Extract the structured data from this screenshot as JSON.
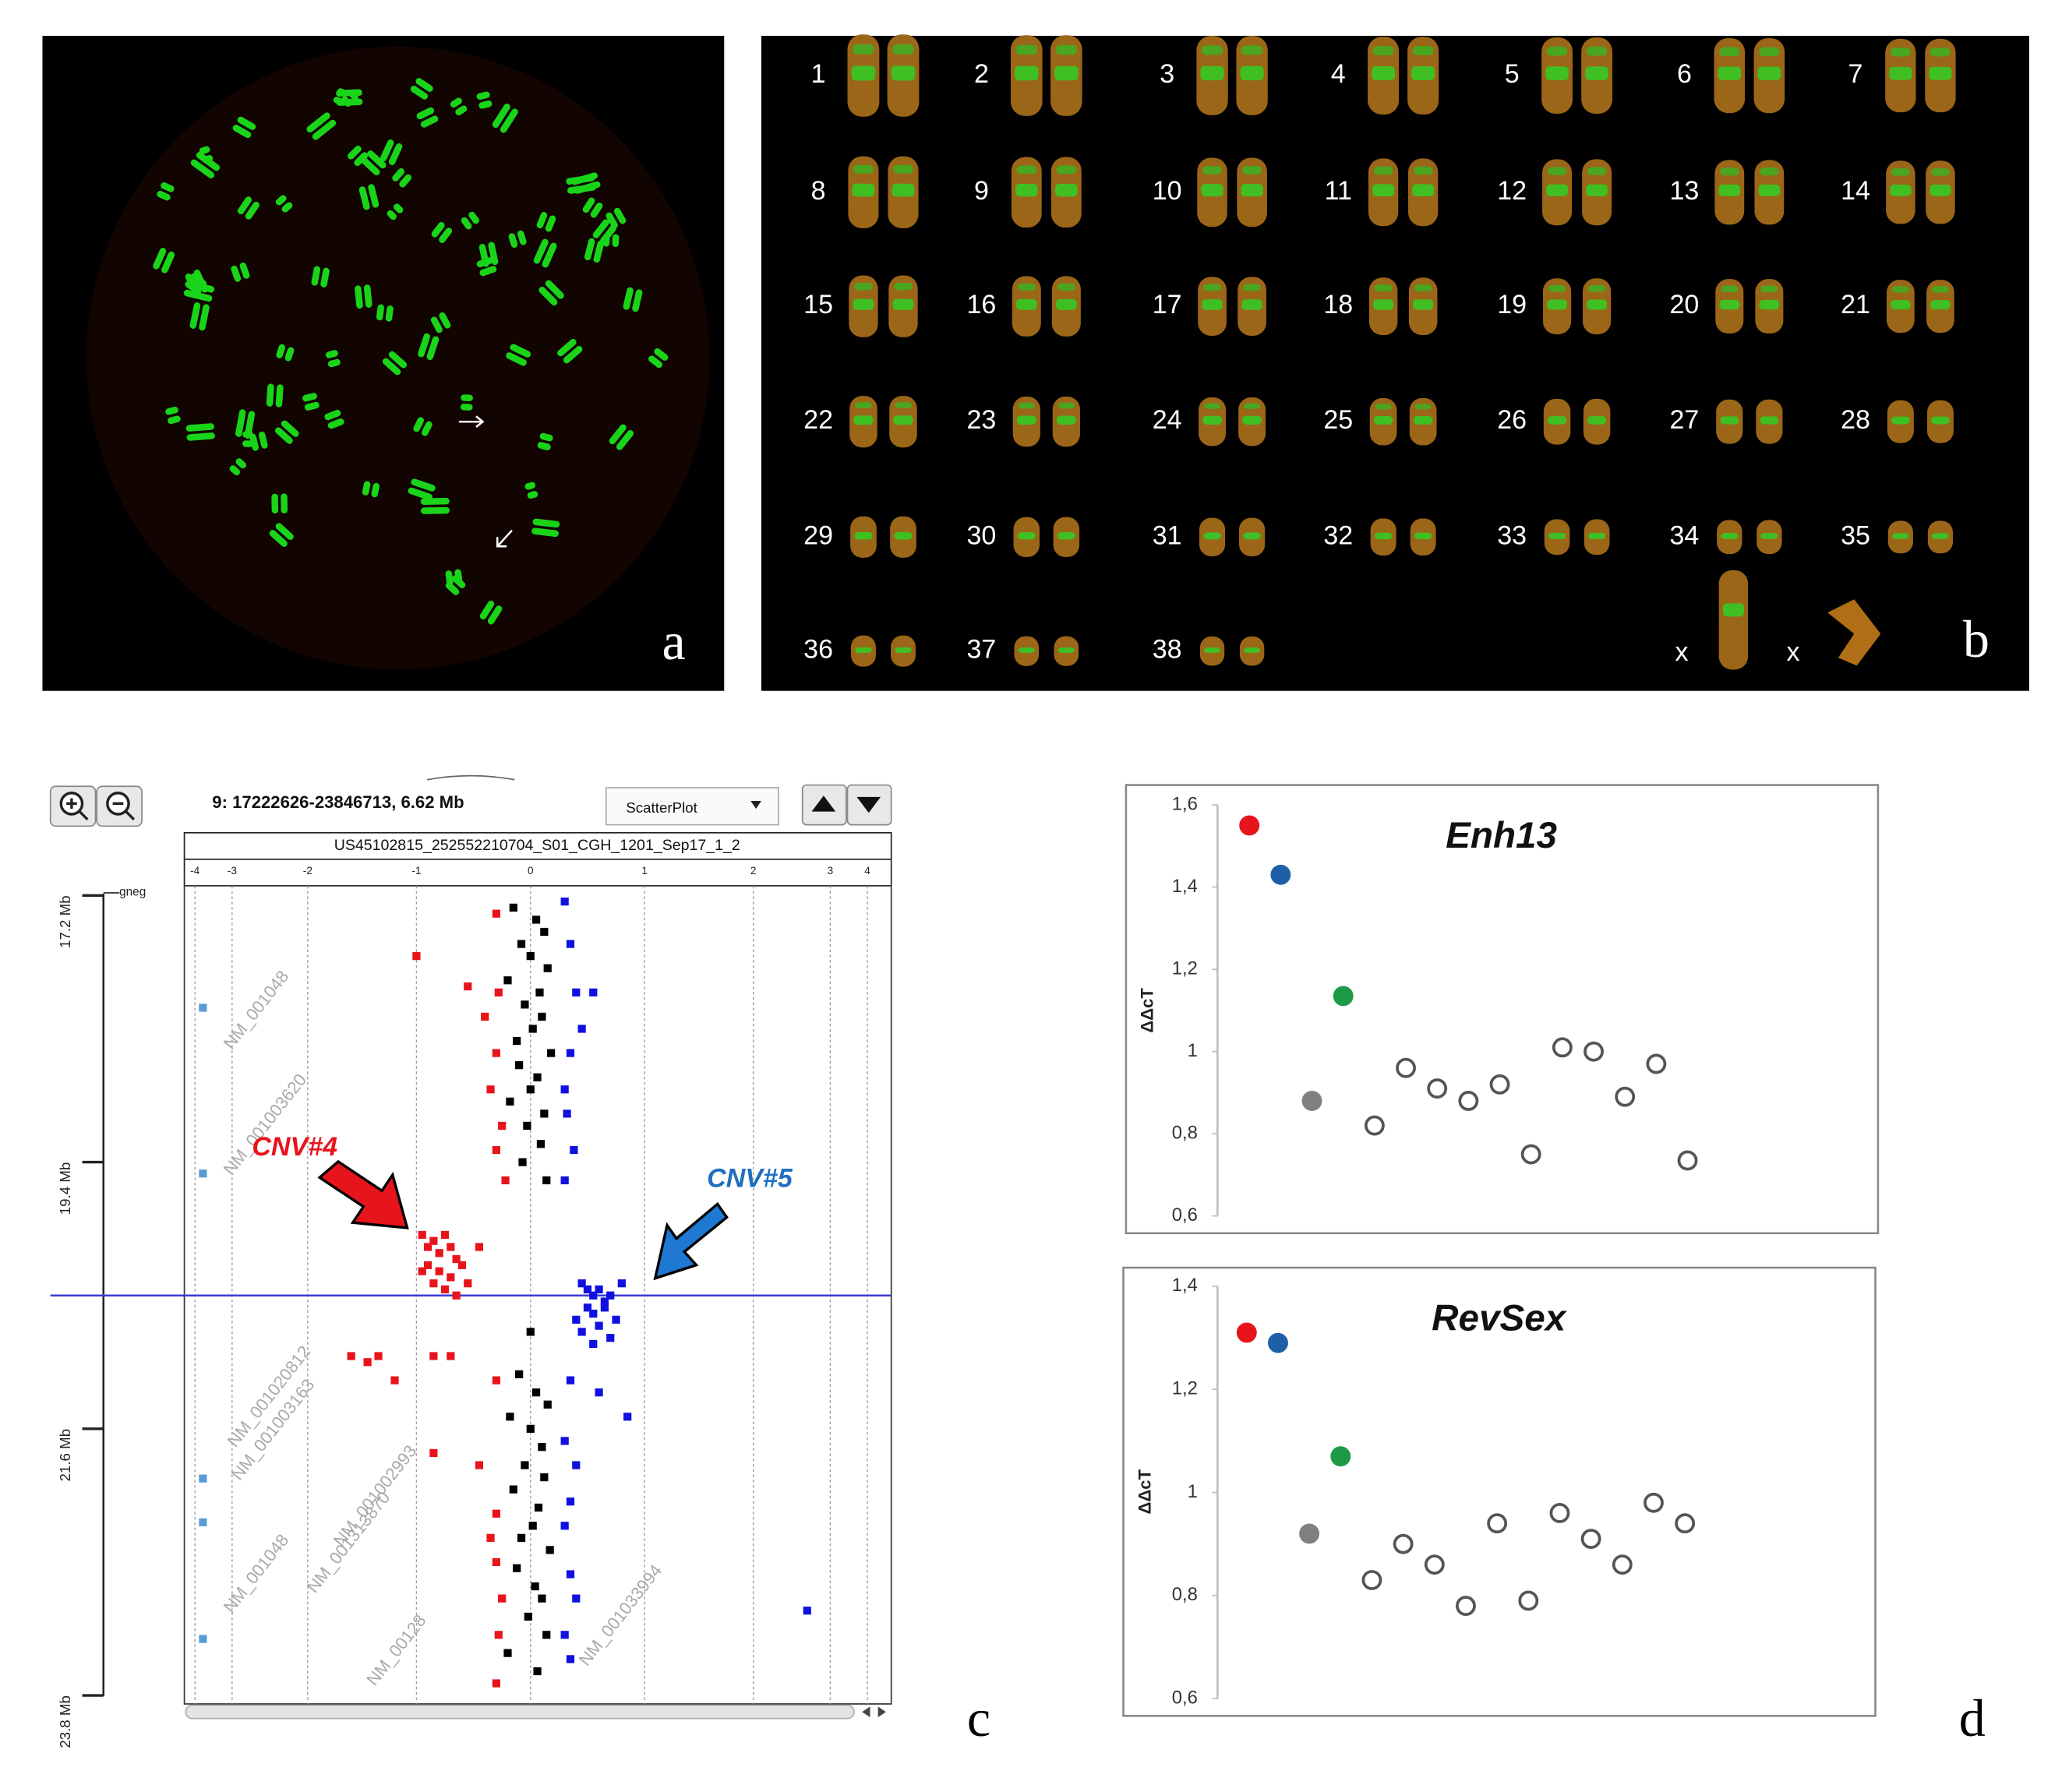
{
  "panel_labels": [
    "a",
    "b",
    "c",
    "d"
  ],
  "karyotype": {
    "labels": [
      "1",
      "2",
      "3",
      "4",
      "5",
      "6",
      "7",
      "8",
      "9",
      "10",
      "11",
      "12",
      "13",
      "14",
      "15",
      "16",
      "17",
      "18",
      "19",
      "20",
      "21",
      "22",
      "23",
      "24",
      "25",
      "26",
      "27",
      "28",
      "29",
      "30",
      "31",
      "32",
      "33",
      "34",
      "35",
      "36",
      "37",
      "38",
      "x",
      "x"
    ]
  },
  "chart_data": [
    {
      "type": "scatter",
      "title": "9: 17222626-23846713, 6.62 Mb",
      "subtitle": "US45102815_252552210704_S01_CGH_1201_Sep17_1_2",
      "view_mode": "ScatterPlot",
      "band_label": "gneg",
      "xlim": [
        -4.3,
        4.6
      ],
      "xticks": [
        -4,
        -3,
        -2,
        -1,
        0,
        1,
        2,
        3,
        4
      ],
      "ylim": [
        17.12,
        23.87
      ],
      "yticks": [
        {
          "value": 17.2,
          "label": "17.2 Mb"
        },
        {
          "value": 19.4,
          "label": "19.4 Mb"
        },
        {
          "value": 21.6,
          "label": "21.6 Mb"
        },
        {
          "value": 23.8,
          "label": "23.8 Mb"
        }
      ],
      "grid": true,
      "marker_line": 20.5,
      "marker_color": "#3b3bd6",
      "annotations": [
        {
          "text": "CNV#4",
          "color": "#e8141c"
        },
        {
          "text": "CNV#5",
          "color": "#1f6fbf"
        }
      ],
      "gene_labels": [
        "NM_001048",
        "NM_001003620",
        "NM_001020812",
        "NM_001003163",
        "NM_001048",
        "NM_001313870",
        "NM_001002993",
        "NM_00128",
        "NM_001033994"
      ],
      "series": [
        {
          "color": "#000000",
          "x": [
            -0.15,
            0.05,
            0.12,
            -0.08,
            0.0,
            0.15,
            -0.2,
            0.08,
            -0.05,
            0.1,
            0.02,
            -0.12,
            0.18,
            -0.1,
            0.06,
            0.0,
            -0.18,
            0.12,
            -0.03,
            0.09,
            -0.07,
            0.14,
            0.0,
            -0.1,
            0.05,
            0.15,
            -0.18,
            0.0,
            0.1,
            -0.05,
            0.12,
            -0.15,
            0.07,
            0.02,
            -0.08,
            0.17,
            -0.12,
            0.04,
            0.1,
            -0.02,
            0.14,
            -0.2,
            0.06
          ],
          "y": [
            17.3,
            17.4,
            17.5,
            17.6,
            17.7,
            17.8,
            17.9,
            18.0,
            18.1,
            18.2,
            18.3,
            18.4,
            18.5,
            18.6,
            18.7,
            18.8,
            18.9,
            19.0,
            19.1,
            19.25,
            19.4,
            19.55,
            20.8,
            21.15,
            21.3,
            21.4,
            21.5,
            21.6,
            21.75,
            21.9,
            22.0,
            22.1,
            22.25,
            22.4,
            22.5,
            22.6,
            22.75,
            22.9,
            23.0,
            23.15,
            23.3,
            23.45,
            23.6
          ]
        },
        {
          "color": "#e8141c",
          "x": [
            -0.3,
            -1.0,
            -0.55,
            -0.4,
            -0.3,
            -0.35,
            -0.25,
            -0.3,
            -0.28,
            -0.22,
            -0.95,
            -0.9,
            -0.85,
            -0.8,
            -0.75,
            -0.7,
            -0.65,
            -0.9,
            -0.8,
            -0.7,
            -0.6,
            -0.85,
            -0.75,
            -0.55,
            -0.45,
            -0.95,
            -0.65,
            -1.6,
            -1.45,
            -1.35,
            -1.2,
            -0.85,
            -0.7,
            -0.3,
            -0.85,
            -0.45,
            -0.3,
            -0.35,
            -0.3,
            -0.25,
            -0.28,
            -0.3
          ],
          "y": [
            17.35,
            17.7,
            17.95,
            18.2,
            18.5,
            18.8,
            19.1,
            19.3,
            18.0,
            19.55,
            20.0,
            20.1,
            20.05,
            20.15,
            20.0,
            20.1,
            20.2,
            20.25,
            20.3,
            20.35,
            20.25,
            20.4,
            20.45,
            20.4,
            20.1,
            20.3,
            20.5,
            21.0,
            21.05,
            21.0,
            21.2,
            21.0,
            21.0,
            21.2,
            21.8,
            21.9,
            22.3,
            22.5,
            22.7,
            23.0,
            23.3,
            23.7
          ]
        },
        {
          "color": "#1010e0",
          "x": [
            0.3,
            0.35,
            0.4,
            0.55,
            0.45,
            0.35,
            0.3,
            0.32,
            0.38,
            0.3,
            0.45,
            0.5,
            0.55,
            0.6,
            0.7,
            0.8,
            0.5,
            0.55,
            0.65,
            0.75,
            0.45,
            0.6,
            0.7,
            0.55,
            0.4,
            0.65,
            0.35,
            0.6,
            0.85,
            0.3,
            0.4,
            0.35,
            0.3,
            0.35,
            0.4,
            2.7,
            0.3,
            0.35
          ],
          "y": [
            17.25,
            17.6,
            18.0,
            18.0,
            18.3,
            18.5,
            18.8,
            19.0,
            19.3,
            19.55,
            20.4,
            20.45,
            20.5,
            20.45,
            20.5,
            20.4,
            20.6,
            20.65,
            20.6,
            20.7,
            20.8,
            20.75,
            20.85,
            20.9,
            20.7,
            20.55,
            21.2,
            21.3,
            21.5,
            21.7,
            21.9,
            22.2,
            22.4,
            22.8,
            23.0,
            23.1,
            23.3,
            23.5
          ]
        }
      ]
    },
    {
      "type": "scatter",
      "title": "Enh13",
      "ylabel": "ΔΔcT",
      "ylim": [
        0.6,
        1.6
      ],
      "yticks": [
        {
          "value": 0.6,
          "label": "0,6"
        },
        {
          "value": 0.8,
          "label": "0,8"
        },
        1,
        {
          "value": 1.2,
          "label": "1,2"
        },
        {
          "value": 1.4,
          "label": "1,4"
        },
        {
          "value": 1.6,
          "label": "1,6"
        }
      ],
      "values": [
        1.55,
        1.43,
        0.88,
        1.135,
        0.82,
        0.96,
        0.91,
        0.88,
        0.92,
        0.75,
        1.01,
        1.0,
        0.89,
        0.97,
        0.735
      ],
      "point_fills": [
        "#e8141c",
        "#1f5fa8",
        "#808080",
        "#1e9a46",
        "#ffffff",
        "#ffffff",
        "#ffffff",
        "#ffffff",
        "#ffffff",
        "#ffffff",
        "#ffffff",
        "#ffffff",
        "#ffffff",
        "#ffffff",
        "#ffffff"
      ],
      "point_stroke": "#555555"
    },
    {
      "type": "scatter",
      "title": "RevSex",
      "ylabel": "ΔΔcT",
      "ylim": [
        0.6,
        1.4
      ],
      "yticks": [
        {
          "value": 0.6,
          "label": "0,6"
        },
        {
          "value": 0.8,
          "label": "0,8"
        },
        1,
        {
          "value": 1.2,
          "label": "1,2"
        },
        {
          "value": 1.4,
          "label": "1,4"
        }
      ],
      "values": [
        1.31,
        1.29,
        0.92,
        1.07,
        0.83,
        0.9,
        0.86,
        0.78,
        0.94,
        0.79,
        0.96,
        0.91,
        0.86,
        0.98,
        0.94
      ],
      "point_fills": [
        "#e8141c",
        "#1f5fa8",
        "#808080",
        "#1e9a46",
        "#ffffff",
        "#ffffff",
        "#ffffff",
        "#ffffff",
        "#ffffff",
        "#ffffff",
        "#ffffff",
        "#ffffff",
        "#ffffff",
        "#ffffff",
        "#ffffff"
      ],
      "point_stroke": "#555555"
    }
  ]
}
